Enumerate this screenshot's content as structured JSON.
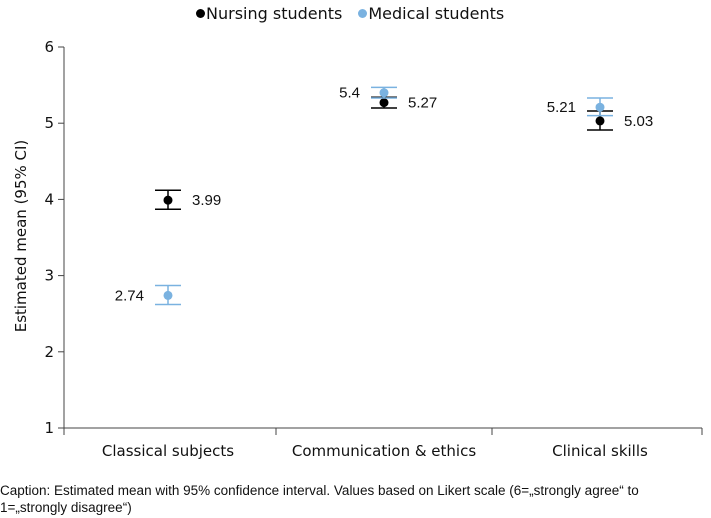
{
  "chart_data": {
    "type": "scatter",
    "title": "",
    "xlabel": "",
    "ylabel": "Estimated mean (95% CI)",
    "ylim": [
      1,
      6
    ],
    "yticks": [
      "1",
      "2",
      "3",
      "4",
      "5",
      "6"
    ],
    "categories": [
      "Classical subjects",
      "Communication & ethics",
      "Clinical skills"
    ],
    "legend_position": "top",
    "grid": false,
    "series": [
      {
        "name": "Nursing students",
        "color": "#000000",
        "values": [
          3.99,
          5.27,
          5.03
        ],
        "ci_lower": [
          3.87,
          5.2,
          4.91
        ],
        "ci_upper": [
          4.12,
          5.34,
          5.16
        ],
        "labels": [
          "3.99",
          "5.27",
          "5.03"
        ]
      },
      {
        "name": "Medical students",
        "color": "#7ab2e0",
        "values": [
          2.74,
          5.4,
          5.21
        ],
        "ci_lower": [
          2.62,
          5.33,
          5.1
        ],
        "ci_upper": [
          2.87,
          5.47,
          5.33
        ],
        "labels": [
          "2.74",
          "5.4",
          "5.21"
        ]
      }
    ]
  },
  "caption": "Caption: Estimated mean with 95% confidence interval. Values based on Likert scale (6=„strongly agree“ to 1=„strongly disagree“)"
}
